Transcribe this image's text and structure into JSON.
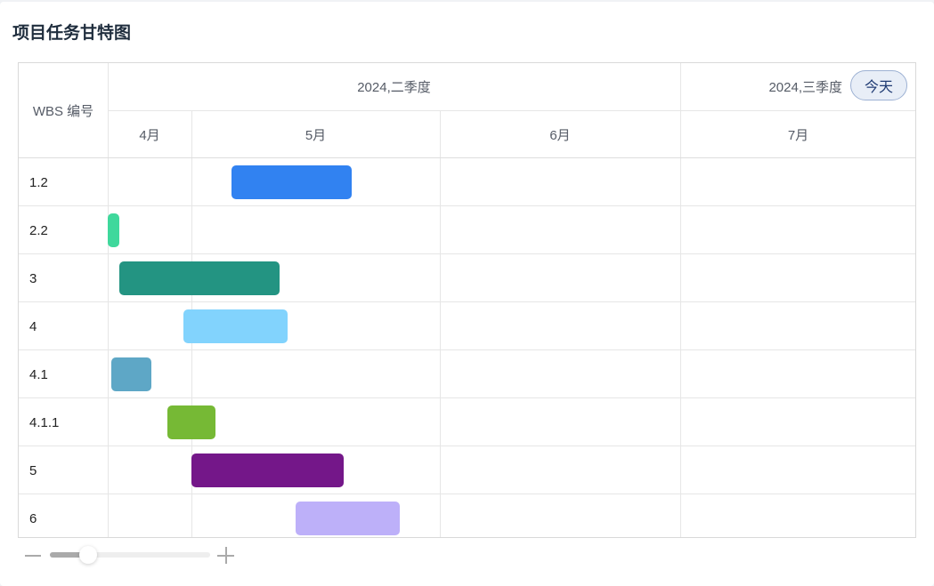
{
  "title": "项目任务甘特图",
  "header": {
    "wbs_label": "WBS 编号",
    "quarters": [
      "2024,二季度",
      "2024,三季度"
    ],
    "months": [
      "4月",
      "5月",
      "6月",
      "7月"
    ],
    "today_button": "今天"
  },
  "tasks": [
    {
      "wbs": "1.2",
      "start": "2024-05-06",
      "end": "2024-05-21",
      "color": "#3182f1"
    },
    {
      "wbs": "2.2",
      "start": "2024-04-20",
      "end": "2024-04-22",
      "color": "#3fd89c"
    },
    {
      "wbs": "3",
      "start": "2024-04-22",
      "end": "2024-05-12",
      "color": "#239482"
    },
    {
      "wbs": "4",
      "start": "2024-04-30",
      "end": "2024-05-13",
      "color": "#82d3fd"
    },
    {
      "wbs": "4.1",
      "start": "2024-04-21",
      "end": "2024-04-26",
      "color": "#5ea7c6"
    },
    {
      "wbs": "4.1.1",
      "start": "2024-04-28",
      "end": "2024-05-04",
      "color": "#76b935"
    },
    {
      "wbs": "5",
      "start": "2024-05-01",
      "end": "2024-05-20",
      "color": "#741789"
    },
    {
      "wbs": "6",
      "start": "2024-05-14",
      "end": "2024-05-27",
      "color": "#bdb0f9"
    }
  ],
  "zoom_slider": {
    "value_percent": 24
  }
}
